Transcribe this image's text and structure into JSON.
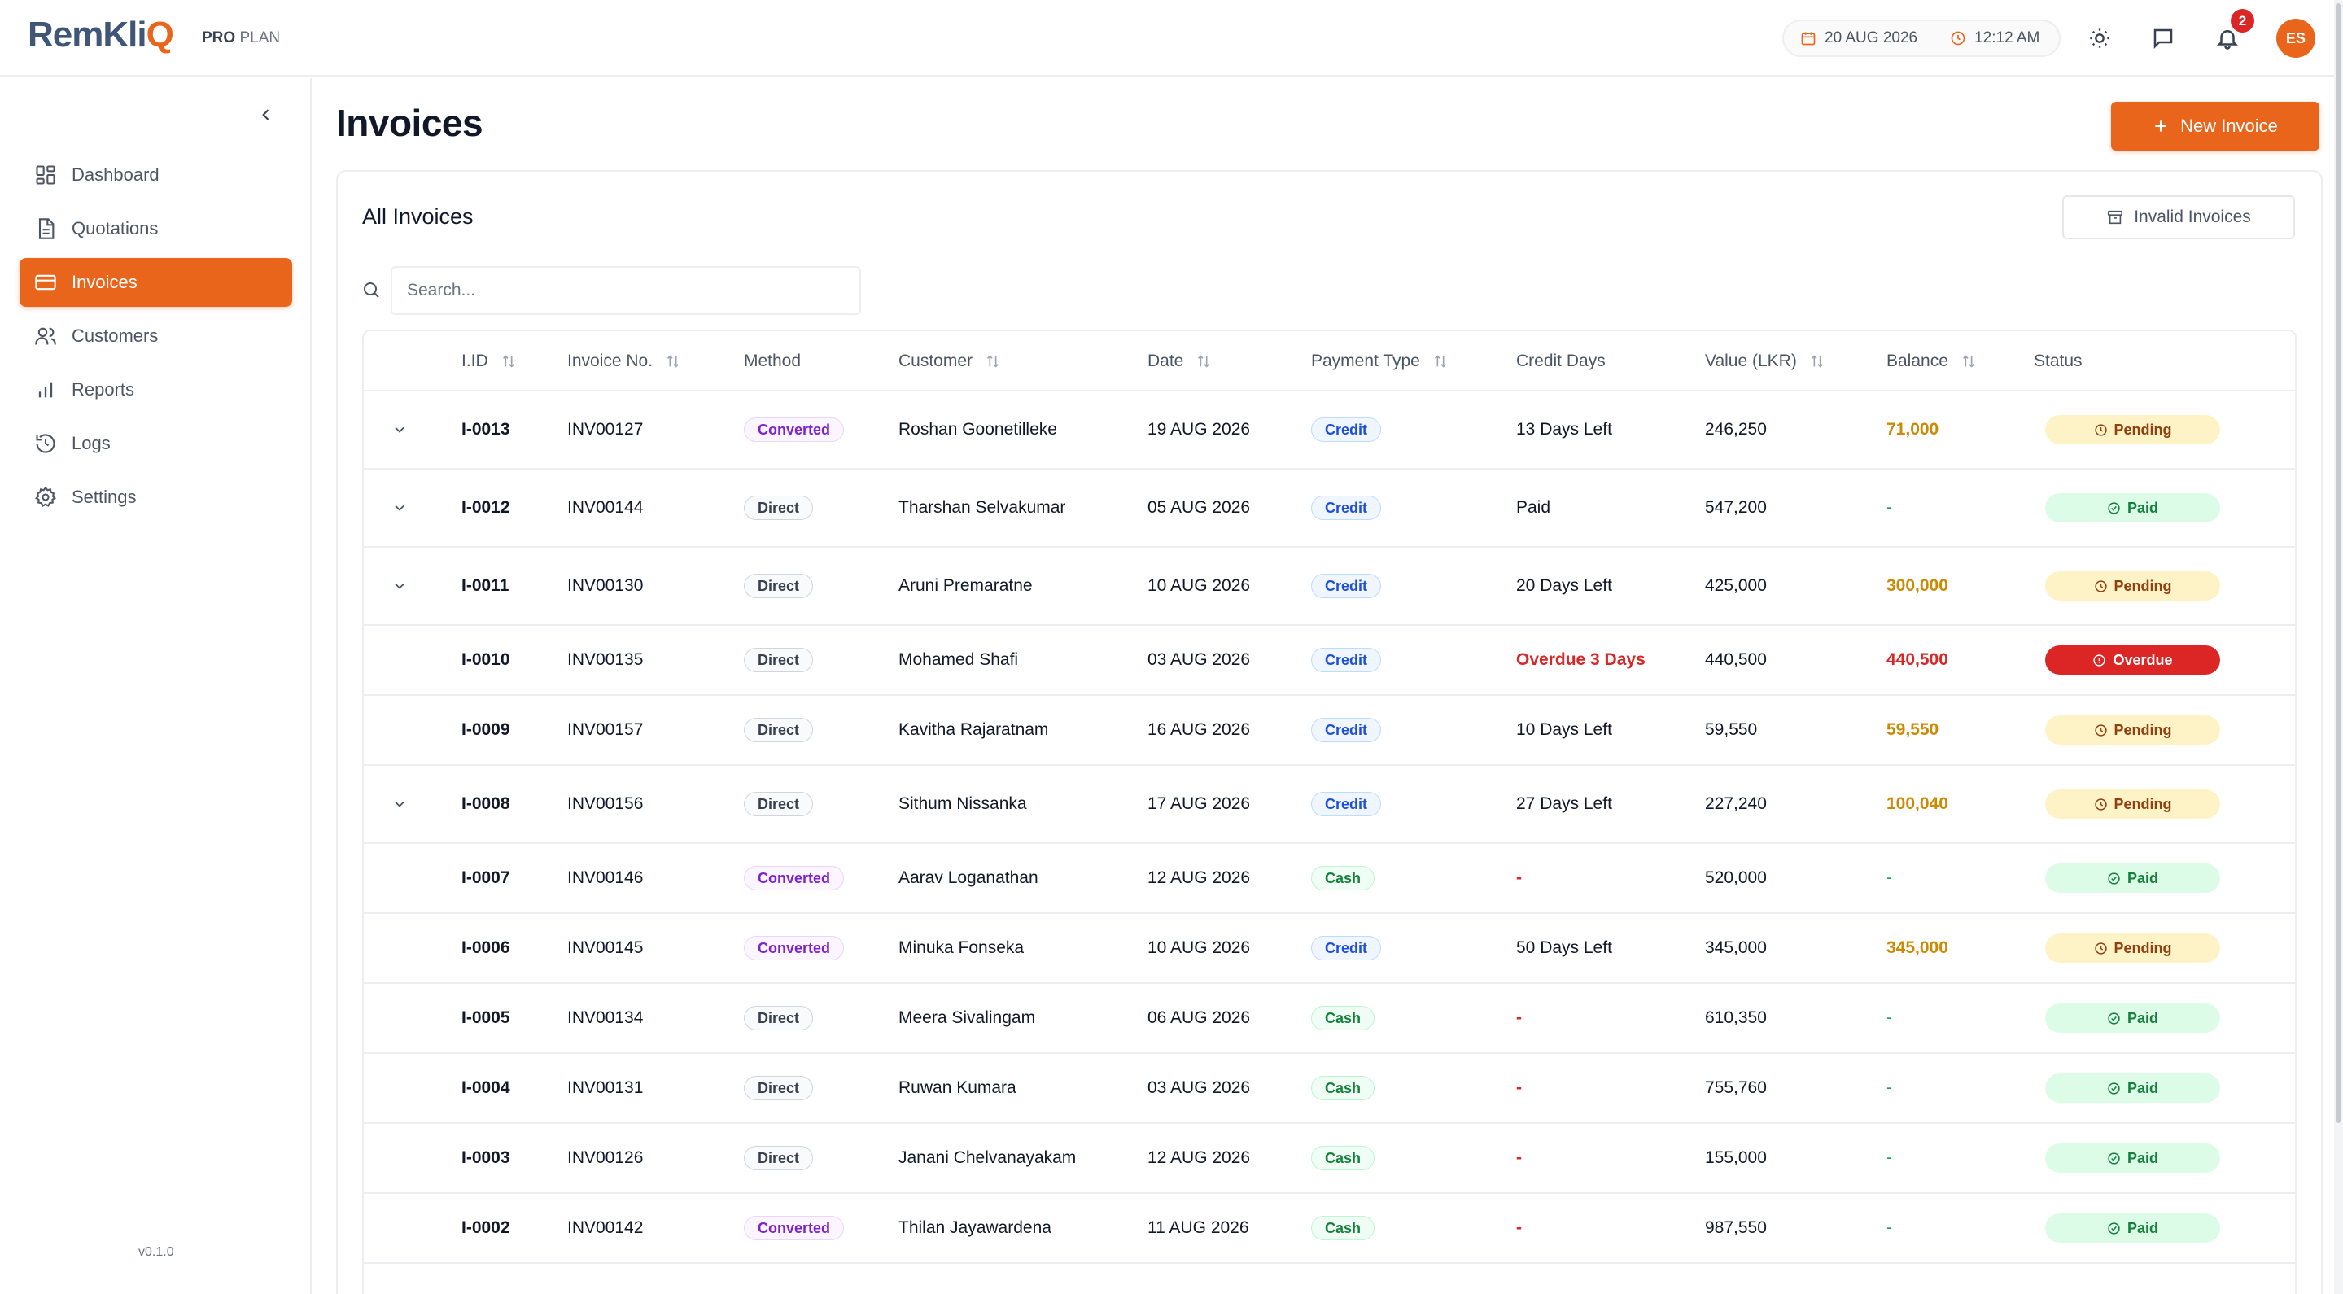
{
  "brand": {
    "name": "RemKli",
    "name_q": "Q",
    "plan_bold": "PRO",
    "plan_rest": "PLAN"
  },
  "topbar": {
    "date": "20 AUG 2026",
    "time": "12:12 AM",
    "notif_count": "2",
    "avatar_initials": "ES"
  },
  "sidebar": {
    "items": [
      {
        "label": "Dashboard",
        "icon": "dashboard-icon",
        "active": false
      },
      {
        "label": "Quotations",
        "icon": "document-icon",
        "active": false
      },
      {
        "label": "Invoices",
        "icon": "card-icon",
        "active": true
      },
      {
        "label": "Customers",
        "icon": "users-icon",
        "active": false
      },
      {
        "label": "Reports",
        "icon": "bar-chart-icon",
        "active": false
      },
      {
        "label": "Logs",
        "icon": "history-icon",
        "active": false
      },
      {
        "label": "Settings",
        "icon": "gear-icon",
        "active": false
      }
    ],
    "version": "v0.1.0"
  },
  "page": {
    "title": "Invoices",
    "new_button": "New Invoice"
  },
  "card": {
    "title": "All Invoices",
    "invalid_button": "Invalid Invoices",
    "search_placeholder": "Search..."
  },
  "table": {
    "columns": {
      "iid": "I.ID",
      "invoice_no": "Invoice No.",
      "method": "Method",
      "customer": "Customer",
      "date": "Date",
      "payment_type": "Payment Type",
      "credit_days": "Credit Days",
      "value": "Value (LKR)",
      "balance": "Balance",
      "status": "Status"
    },
    "rows": [
      {
        "expand": true,
        "iid": "I-0013",
        "invoice_no": "INV00127",
        "method": "Converted",
        "customer": "Roshan Goonetilleke",
        "date": "19 AUG 2026",
        "payment_type": "Credit",
        "credit_days": "13 Days Left",
        "value": "246,250",
        "balance": "71,000",
        "status": "Pending"
      },
      {
        "expand": true,
        "iid": "I-0012",
        "invoice_no": "INV00144",
        "method": "Direct",
        "customer": "Tharshan Selvakumar",
        "date": "05 AUG 2026",
        "payment_type": "Credit",
        "credit_days": "Paid",
        "value": "547,200",
        "balance": "-",
        "status": "Paid"
      },
      {
        "expand": true,
        "iid": "I-0011",
        "invoice_no": "INV00130",
        "method": "Direct",
        "customer": "Aruni Premaratne",
        "date": "10 AUG 2026",
        "payment_type": "Credit",
        "credit_days": "20 Days Left",
        "value": "425,000",
        "balance": "300,000",
        "status": "Pending"
      },
      {
        "expand": false,
        "iid": "I-0010",
        "invoice_no": "INV00135",
        "method": "Direct",
        "customer": "Mohamed Shafi",
        "date": "03 AUG 2026",
        "payment_type": "Credit",
        "credit_days": "Overdue 3 Days",
        "value": "440,500",
        "balance": "440,500",
        "status": "Overdue"
      },
      {
        "expand": false,
        "iid": "I-0009",
        "invoice_no": "INV00157",
        "method": "Direct",
        "customer": "Kavitha Rajaratnam",
        "date": "16 AUG 2026",
        "payment_type": "Credit",
        "credit_days": "10 Days Left",
        "value": "59,550",
        "balance": "59,550",
        "status": "Pending"
      },
      {
        "expand": true,
        "iid": "I-0008",
        "invoice_no": "INV00156",
        "method": "Direct",
        "customer": "Sithum Nissanka",
        "date": "17 AUG 2026",
        "payment_type": "Credit",
        "credit_days": "27 Days Left",
        "value": "227,240",
        "balance": "100,040",
        "status": "Pending"
      },
      {
        "expand": false,
        "iid": "I-0007",
        "invoice_no": "INV00146",
        "method": "Converted",
        "customer": "Aarav Loganathan",
        "date": "12 AUG 2026",
        "payment_type": "Cash",
        "credit_days": "-",
        "value": "520,000",
        "balance": "-",
        "status": "Paid"
      },
      {
        "expand": false,
        "iid": "I-0006",
        "invoice_no": "INV00145",
        "method": "Converted",
        "customer": "Minuka Fonseka",
        "date": "10 AUG 2026",
        "payment_type": "Credit",
        "credit_days": "50 Days Left",
        "value": "345,000",
        "balance": "345,000",
        "status": "Pending"
      },
      {
        "expand": false,
        "iid": "I-0005",
        "invoice_no": "INV00134",
        "method": "Direct",
        "customer": "Meera Sivalingam",
        "date": "06 AUG 2026",
        "payment_type": "Cash",
        "credit_days": "-",
        "value": "610,350",
        "balance": "-",
        "status": "Paid"
      },
      {
        "expand": false,
        "iid": "I-0004",
        "invoice_no": "INV00131",
        "method": "Direct",
        "customer": "Ruwan Kumara",
        "date": "03 AUG 2026",
        "payment_type": "Cash",
        "credit_days": "-",
        "value": "755,760",
        "balance": "-",
        "status": "Paid"
      },
      {
        "expand": false,
        "iid": "I-0003",
        "invoice_no": "INV00126",
        "method": "Direct",
        "customer": "Janani Chelvanayakam",
        "date": "12 AUG 2026",
        "payment_type": "Cash",
        "credit_days": "-",
        "value": "155,000",
        "balance": "-",
        "status": "Paid"
      },
      {
        "expand": false,
        "iid": "I-0002",
        "invoice_no": "INV00142",
        "method": "Converted",
        "customer": "Thilan Jayawardena",
        "date": "11 AUG 2026",
        "payment_type": "Cash",
        "credit_days": "-",
        "value": "987,550",
        "balance": "-",
        "status": "Paid"
      }
    ]
  },
  "colors": {
    "accent": "#e9651c",
    "pending_bg": "#fef3c7",
    "paid_bg": "#dcfce7",
    "overdue": "#dc2626"
  }
}
